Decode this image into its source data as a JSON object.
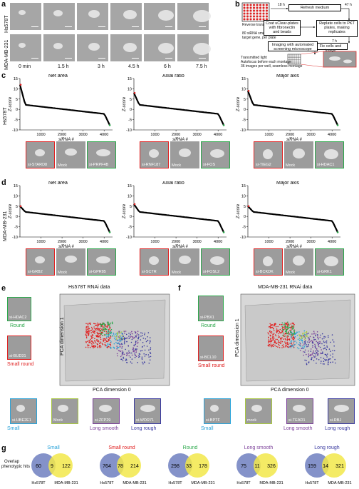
{
  "panel_labels": {
    "a": "a",
    "b": "b",
    "c": "c",
    "d": "d",
    "e": "e",
    "f": "f",
    "g": "g"
  },
  "panel_a": {
    "row_labels": [
      "Hs578T",
      "MDA-MB-231"
    ],
    "times": [
      "0 min",
      "1.5 h",
      "3 h",
      "4.5 h",
      "6 h",
      "7.5 h"
    ]
  },
  "panel_b": {
    "reverse": "Reverse transfection",
    "plate_note": "80 siRNA smartpools per target gene, per plate",
    "t1": "18 h",
    "refresh": "Refresh medium",
    "t2": "47 h",
    "coat": "Coat uClear-plates with fibronectin and beads",
    "replate": "Replate cells to PKT plates, making replicates",
    "t3": "7 h",
    "fix": "Fix cells and image",
    "imaging": "Imaging with automated screening microscope",
    "notes": [
      "Transmitted light",
      "Autofocus before each montage",
      "36 images per well, seamless montage"
    ]
  },
  "panel_c": {
    "row_label": "Hs578T",
    "titles": [
      "Net area",
      "Axial ratio",
      "Major axis"
    ],
    "ylabel": "Z-score",
    "xlabel": "siRNA #",
    "xticks": [
      "1000",
      "2000",
      "3000",
      "4000"
    ],
    "yticks": [
      "15",
      "10",
      "5",
      "0",
      "-5",
      "-10"
    ],
    "thumbs": [
      [
        "si-STARD8",
        "Mock",
        "si-PRPF4B"
      ],
      [
        "si-RNF187",
        "Mock",
        "si-FOS"
      ],
      [
        "si-TIEG2",
        "Mock",
        "si-HDAC1"
      ]
    ]
  },
  "panel_d": {
    "row_label": "MDA-MB-231",
    "titles": [
      "Net area",
      "Axial ratio",
      "Major axis"
    ],
    "ylabel": "Z-score",
    "xlabel": "siRNA #",
    "xticks": [
      "1000",
      "2000",
      "3000",
      "4000"
    ],
    "yticks": [
      "15",
      "10",
      "5",
      "0",
      "-5",
      "-10"
    ],
    "thumbs": [
      [
        "si-GRB2",
        "Mock",
        "si-GPR85"
      ],
      [
        "si-SCTR",
        "Mock",
        "si-FOSL2"
      ],
      [
        "si-BCKDK",
        "Mock",
        "si-GRK1"
      ]
    ]
  },
  "panel_e": {
    "title": "Hs578T RNAi data",
    "xlabel": "PCA dimension 0",
    "ylabel": "PCA dimension 1",
    "callouts": [
      {
        "name": "si-HDAC2",
        "class": "Round",
        "color": "#2aa84a"
      },
      {
        "name": "si-BUD31",
        "class": "Small round",
        "color": "#e02020"
      }
    ],
    "bottom": [
      {
        "name": "si-UBE2E1",
        "class": "Small",
        "color": "#29a3d9"
      },
      {
        "name": "Mock",
        "class": "",
        "color": "#a8c840"
      },
      {
        "name": "si-ZFP29",
        "class": "Long smooth",
        "color": "#7b3f99"
      },
      {
        "name": "si-WDR71",
        "class": "Long rough",
        "color": "#3a3aa0"
      }
    ]
  },
  "panel_f": {
    "title": "MDA-MB-231 RNAi data",
    "xlabel": "PCA dimension 0",
    "ylabel": "PCA dimension 1",
    "callouts": [
      {
        "name": "si-PBX1",
        "class": "Round",
        "color": "#2aa84a"
      },
      {
        "name": "si-BCL10",
        "class": "Small round",
        "color": "#e02020"
      }
    ],
    "bottom": [
      {
        "name": "si-BPTF",
        "class": "Small",
        "color": "#29a3d9"
      },
      {
        "name": "mock",
        "class": "",
        "color": "#a8c840"
      },
      {
        "name": "si-TEAD1",
        "class": "Long smooth",
        "color": "#7b3f99"
      },
      {
        "name": "si-RBJ",
        "class": "Long rough",
        "color": "#3a3aa0"
      }
    ]
  },
  "panel_g": {
    "ylabel": [
      "Overlap",
      "phenotypic hits"
    ],
    "left_label": "Hs578T",
    "right_label": "MDA-MB-231",
    "venns": [
      {
        "title": "Small",
        "color": "#29a3d9",
        "left": "60",
        "both": "9",
        "right": "122"
      },
      {
        "title": "Small round",
        "color": "#e02020",
        "left": "764",
        "both": "78",
        "right": "214"
      },
      {
        "title": "Round",
        "color": "#2aa84a",
        "left": "298",
        "both": "33",
        "right": "178"
      },
      {
        "title": "Long smooth",
        "color": "#7b3f99",
        "left": "75",
        "both": "11",
        "right": "326"
      },
      {
        "title": "Long rough",
        "color": "#3a3aa0",
        "left": "159",
        "both": "14",
        "right": "321"
      }
    ]
  }
}
